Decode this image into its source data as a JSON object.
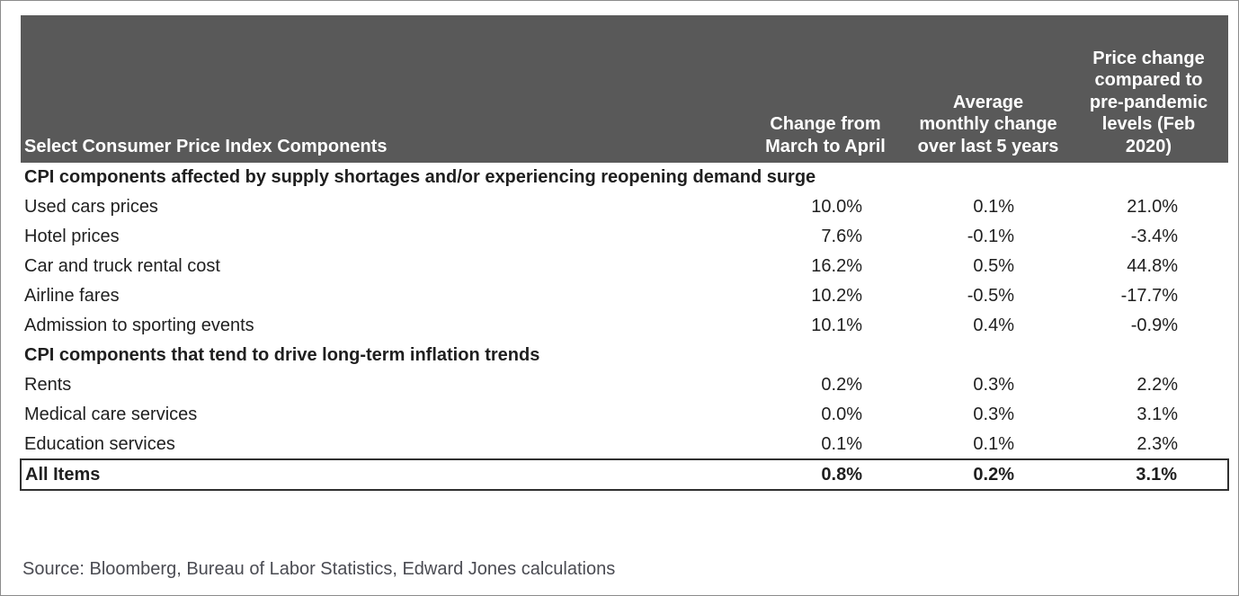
{
  "header_display": {
    "col1": "Select Consumer Price Index Components",
    "col2": "Change from\nMarch to April",
    "col3": "Average\nmonthly change\nover last 5 years",
    "col4": "Price change\ncompared to\npre-pandemic\nlevels (Feb\n2020)"
  },
  "chart_data": {
    "type": "table",
    "title": "Select Consumer Price Index Components",
    "columns": [
      "Select Consumer Price Index Components",
      "Change from March to April",
      "Average monthly change over last 5 years",
      "Price change compared to pre-pandemic levels (Feb 2020)"
    ],
    "sections": [
      {
        "title": "CPI components affected by supply shortages and/or experiencing reopening demand surge",
        "rows": [
          {
            "label": "Used cars prices",
            "values": [
              "10.0%",
              "0.1%",
              "21.0%"
            ]
          },
          {
            "label": "Hotel prices",
            "values": [
              "7.6%",
              "-0.1%",
              "-3.4%"
            ]
          },
          {
            "label": "Car and truck rental cost",
            "values": [
              "16.2%",
              "0.5%",
              "44.8%"
            ]
          },
          {
            "label": "Airline fares",
            "values": [
              "10.2%",
              "-0.5%",
              "-17.7%"
            ]
          },
          {
            "label": "Admission to sporting events",
            "values": [
              "10.1%",
              "0.4%",
              "-0.9%"
            ]
          }
        ]
      },
      {
        "title": "CPI components that tend to drive long-term inflation trends",
        "rows": [
          {
            "label": "Rents",
            "values": [
              "0.2%",
              "0.3%",
              "2.2%"
            ]
          },
          {
            "label": "Medical care services",
            "values": [
              "0.0%",
              "0.3%",
              "3.1%"
            ]
          },
          {
            "label": "Education services",
            "values": [
              "0.1%",
              "0.1%",
              "2.3%"
            ]
          }
        ]
      }
    ],
    "total_row": {
      "label": "All Items",
      "values": [
        "0.8%",
        "0.2%",
        "3.1%"
      ]
    }
  },
  "source_note": "Source: Bloomberg, Bureau of Labor Statistics, Edward Jones calculations",
  "colors": {
    "header_bg": "#595959",
    "header_text": "#ffffff",
    "body_text": "#1f1f1f",
    "total_box_border": "#303030",
    "source_text": "#4a4b52",
    "outer_border": "#8c8c8c"
  }
}
